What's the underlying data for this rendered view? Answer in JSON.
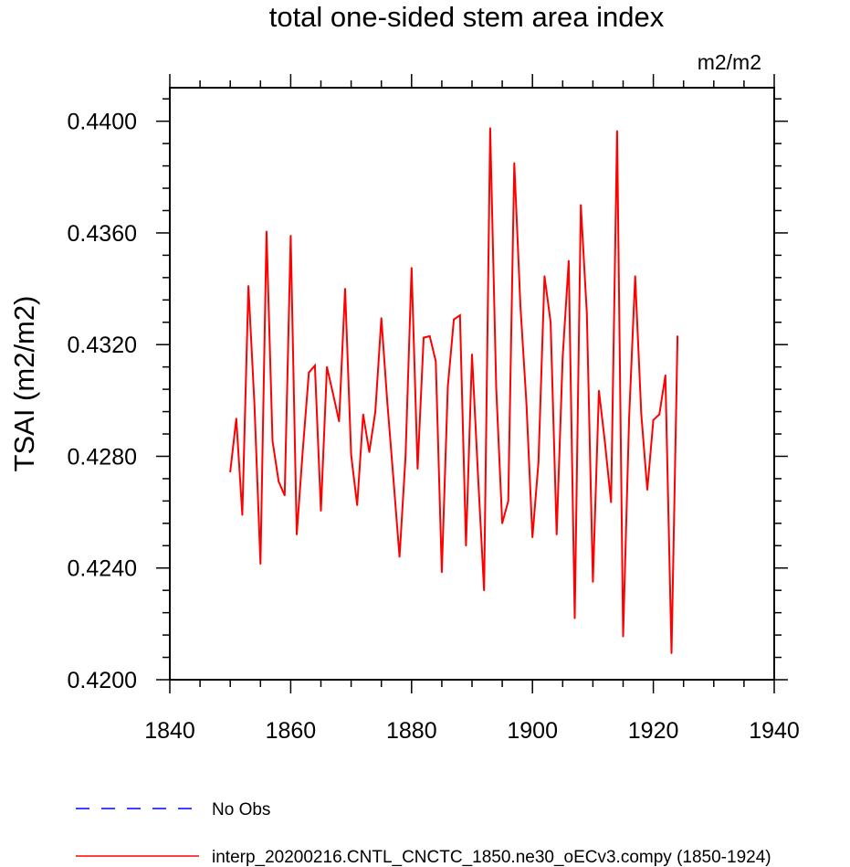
{
  "chart_data": {
    "type": "line",
    "title": "total one-sided stem area index",
    "units": "m2/m2",
    "ylabel": "TSAI  (m2/m2)",
    "xlabel": "",
    "xlim": [
      1840,
      1940
    ],
    "ylim": [
      0.42,
      0.4412
    ],
    "x_ticks": [
      1840,
      1860,
      1880,
      1900,
      1920,
      1940
    ],
    "x_tick_labels": [
      "1840",
      "1860",
      "1880",
      "1900",
      "1920",
      "1940"
    ],
    "y_ticks": [
      0.42,
      0.424,
      0.428,
      0.432,
      0.436,
      0.44
    ],
    "y_tick_labels": [
      "0.4200",
      "0.4240",
      "0.4280",
      "0.4320",
      "0.4360",
      "0.4400"
    ],
    "grid": false,
    "legend_position": "bottom",
    "legend": [
      {
        "label": "No Obs",
        "color": "#0000ff",
        "style": "dashed"
      },
      {
        "label": "interp_20200216.CNTL_CNCTC_1850.ne30_oECv3.compy (1850-1924)",
        "color": "#ff0000",
        "style": "solid"
      }
    ],
    "series": [
      {
        "name": "interp_20200216.CNTL_CNCTC_1850.ne30_oECv3.compy (1850-1924)",
        "color": "#ff0000",
        "x": [
          1850,
          1851,
          1852,
          1853,
          1854,
          1855,
          1856,
          1857,
          1858,
          1859,
          1860,
          1861,
          1862,
          1863,
          1864,
          1865,
          1866,
          1867,
          1868,
          1869,
          1870,
          1871,
          1872,
          1873,
          1874,
          1875,
          1876,
          1877,
          1878,
          1879,
          1880,
          1881,
          1882,
          1883,
          1884,
          1885,
          1886,
          1887,
          1888,
          1889,
          1890,
          1891,
          1892,
          1893,
          1894,
          1895,
          1896,
          1897,
          1898,
          1899,
          1900,
          1901,
          1902,
          1903,
          1904,
          1905,
          1906,
          1907,
          1908,
          1909,
          1910,
          1911,
          1912,
          1913,
          1914,
          1915,
          1916,
          1917,
          1918,
          1919,
          1920,
          1921,
          1922,
          1923,
          1924
        ],
        "y": [
          0.42745,
          0.42935,
          0.4259,
          0.4341,
          0.42985,
          0.42415,
          0.43605,
          0.42855,
          0.4271,
          0.4266,
          0.4359,
          0.4252,
          0.4282,
          0.431,
          0.43125,
          0.42605,
          0.4312,
          0.43025,
          0.42925,
          0.434,
          0.42805,
          0.42625,
          0.4295,
          0.42815,
          0.4296,
          0.43295,
          0.4299,
          0.4272,
          0.4244,
          0.428,
          0.43475,
          0.42755,
          0.43225,
          0.4323,
          0.4314,
          0.42385,
          0.4305,
          0.4329,
          0.43305,
          0.4248,
          0.43165,
          0.4273,
          0.4232,
          0.43975,
          0.43045,
          0.4256,
          0.4264,
          0.4385,
          0.4334,
          0.4299,
          0.4251,
          0.4278,
          0.43445,
          0.4328,
          0.4252,
          0.43155,
          0.435,
          0.4222,
          0.437,
          0.4331,
          0.4235,
          0.43035,
          0.4285,
          0.42635,
          0.43965,
          0.42155,
          0.4294,
          0.43445,
          0.4295,
          0.4268,
          0.4293,
          0.4295,
          0.4309,
          0.42095,
          0.4323
        ]
      }
    ]
  }
}
